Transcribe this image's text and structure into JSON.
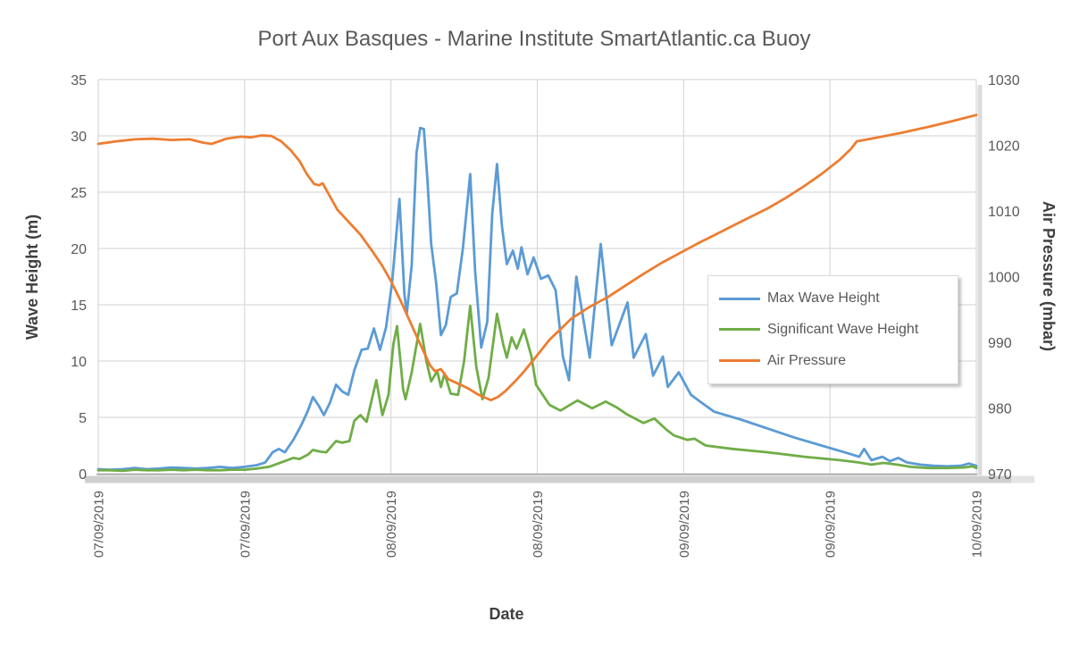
{
  "chart_data": {
    "type": "line",
    "title": "Port Aux Basques - Marine Institute SmartAtlantic.ca Buoy",
    "x_axis": {
      "title": "Date",
      "tick_labels": [
        "07/09/2019",
        "07/09/2019",
        "08/09/2019",
        "08/09/2019",
        "09/09/2019",
        "09/09/2019",
        "10/09/2019"
      ],
      "tick_positions_hours": [
        0,
        12,
        24,
        36,
        48,
        60,
        72
      ],
      "range_hours": [
        0,
        72
      ]
    },
    "y_axis_left": {
      "title": "Wave Height (m)",
      "range": [
        0,
        35
      ],
      "ticks": [
        0,
        5,
        10,
        15,
        20,
        25,
        30,
        35
      ]
    },
    "y_axis_right": {
      "title": "Air Pressure (mbar)",
      "range": [
        970,
        1030
      ],
      "ticks": [
        970,
        980,
        990,
        1000,
        1010,
        1020,
        1030
      ]
    },
    "grid": {
      "horizontal": true,
      "vertical": true,
      "color": "#d9d9d9"
    },
    "legend": {
      "position": "middle-right",
      "entries": [
        "Max Wave Height",
        "Significant Wave Height",
        "Air Pressure"
      ]
    },
    "colors": {
      "max_wave": "#5B9BD5",
      "significant_wave": "#70AD47",
      "air_pressure": "#ED7D31",
      "title_text": "#595959",
      "axis_text": "#404040",
      "gridline": "#d9d9d9"
    },
    "series": [
      {
        "name": "Max Wave Height",
        "color": "#5B9BD5",
        "axis": "left",
        "points": [
          [
            0,
            0.4
          ],
          [
            1,
            0.35
          ],
          [
            2,
            0.4
          ],
          [
            3,
            0.5
          ],
          [
            4,
            0.4
          ],
          [
            5,
            0.45
          ],
          [
            6,
            0.55
          ],
          [
            7,
            0.5
          ],
          [
            8,
            0.45
          ],
          [
            9,
            0.5
          ],
          [
            10,
            0.6
          ],
          [
            11,
            0.5
          ],
          [
            12,
            0.6
          ],
          [
            13,
            0.75
          ],
          [
            13.7,
            1.0
          ],
          [
            14.3,
            1.9
          ],
          [
            14.8,
            2.2
          ],
          [
            15.3,
            1.9
          ],
          [
            16,
            3.0
          ],
          [
            16.6,
            4.2
          ],
          [
            17.2,
            5.6
          ],
          [
            17.6,
            6.8
          ],
          [
            18.1,
            6.0
          ],
          [
            18.5,
            5.2
          ],
          [
            19,
            6.3
          ],
          [
            19.5,
            7.9
          ],
          [
            20,
            7.3
          ],
          [
            20.5,
            7.0
          ],
          [
            21,
            9.2
          ],
          [
            21.6,
            11.0
          ],
          [
            22.1,
            11.1
          ],
          [
            22.6,
            12.9
          ],
          [
            23.1,
            11.0
          ],
          [
            23.6,
            13.0
          ],
          [
            24.1,
            17.0
          ],
          [
            24.7,
            24.4
          ],
          [
            25.1,
            16.0
          ],
          [
            25.3,
            14.2
          ],
          [
            25.7,
            18.5
          ],
          [
            26.1,
            28.5
          ],
          [
            26.4,
            30.7
          ],
          [
            26.7,
            30.6
          ],
          [
            27,
            26.0
          ],
          [
            27.3,
            20.4
          ],
          [
            27.7,
            17.0
          ],
          [
            28.1,
            12.3
          ],
          [
            28.5,
            13.2
          ],
          [
            28.9,
            15.7
          ],
          [
            29.4,
            16.0
          ],
          [
            29.9,
            20.0
          ],
          [
            30.5,
            26.6
          ],
          [
            30.9,
            18.0
          ],
          [
            31.4,
            11.2
          ],
          [
            31.9,
            13.5
          ],
          [
            32.3,
            23.0
          ],
          [
            32.7,
            27.5
          ],
          [
            33.1,
            22.0
          ],
          [
            33.5,
            18.6
          ],
          [
            34,
            19.8
          ],
          [
            34.4,
            18.2
          ],
          [
            34.7,
            20.1
          ],
          [
            35.2,
            17.7
          ],
          [
            35.7,
            19.2
          ],
          [
            36.3,
            17.3
          ],
          [
            36.9,
            17.6
          ],
          [
            37.5,
            16.3
          ],
          [
            38.1,
            10.4
          ],
          [
            38.6,
            8.3
          ],
          [
            39.2,
            17.5
          ],
          [
            40.3,
            10.3
          ],
          [
            41.2,
            20.4
          ],
          [
            42.1,
            11.4
          ],
          [
            43.4,
            15.2
          ],
          [
            43.9,
            10.3
          ],
          [
            44.9,
            12.4
          ],
          [
            45.5,
            8.7
          ],
          [
            46.3,
            10.4
          ],
          [
            46.7,
            7.7
          ],
          [
            47.6,
            9.0
          ],
          [
            48.6,
            7.0
          ],
          [
            49.6,
            6.2
          ],
          [
            50.5,
            5.5
          ],
          [
            52.7,
            4.8
          ],
          [
            54.9,
            4.0
          ],
          [
            57.1,
            3.2
          ],
          [
            59.3,
            2.5
          ],
          [
            61.5,
            1.8
          ],
          [
            62.4,
            1.5
          ],
          [
            62.8,
            2.2
          ],
          [
            63.4,
            1.2
          ],
          [
            64.3,
            1.5
          ],
          [
            64.9,
            1.1
          ],
          [
            65.6,
            1.4
          ],
          [
            66.3,
            1.0
          ],
          [
            67.4,
            0.8
          ],
          [
            68.5,
            0.7
          ],
          [
            69.6,
            0.65
          ],
          [
            70.7,
            0.7
          ],
          [
            71.4,
            0.9
          ],
          [
            72,
            0.7
          ]
        ]
      },
      {
        "name": "Significant Wave Height",
        "color": "#70AD47",
        "axis": "left",
        "points": [
          [
            0,
            0.3
          ],
          [
            1,
            0.3
          ],
          [
            2,
            0.25
          ],
          [
            3,
            0.35
          ],
          [
            4,
            0.3
          ],
          [
            5,
            0.3
          ],
          [
            6,
            0.35
          ],
          [
            7,
            0.3
          ],
          [
            8,
            0.35
          ],
          [
            9,
            0.3
          ],
          [
            10,
            0.3
          ],
          [
            11,
            0.35
          ],
          [
            12,
            0.35
          ],
          [
            13,
            0.45
          ],
          [
            14,
            0.6
          ],
          [
            15,
            1.0
          ],
          [
            16,
            1.4
          ],
          [
            16.5,
            1.3
          ],
          [
            17.2,
            1.7
          ],
          [
            17.6,
            2.1
          ],
          [
            18.2,
            1.95
          ],
          [
            18.7,
            1.9
          ],
          [
            19.5,
            2.9
          ],
          [
            20,
            2.75
          ],
          [
            20.6,
            2.9
          ],
          [
            21,
            4.7
          ],
          [
            21.5,
            5.2
          ],
          [
            22,
            4.6
          ],
          [
            22.8,
            8.3
          ],
          [
            23.3,
            5.2
          ],
          [
            23.8,
            7.0
          ],
          [
            24.2,
            11.5
          ],
          [
            24.5,
            13.1
          ],
          [
            25,
            7.5
          ],
          [
            25.2,
            6.6
          ],
          [
            25.7,
            9.0
          ],
          [
            26.4,
            13.3
          ],
          [
            26.9,
            10.0
          ],
          [
            27.3,
            8.2
          ],
          [
            27.8,
            9.1
          ],
          [
            28.1,
            7.7
          ],
          [
            28.4,
            8.9
          ],
          [
            28.9,
            7.1
          ],
          [
            29.5,
            7.0
          ],
          [
            30,
            10.0
          ],
          [
            30.5,
            14.9
          ],
          [
            31,
            9.5
          ],
          [
            31.5,
            6.6
          ],
          [
            32,
            8.5
          ],
          [
            32.7,
            14.2
          ],
          [
            33.2,
            11.5
          ],
          [
            33.5,
            10.3
          ],
          [
            33.9,
            12.1
          ],
          [
            34.3,
            11.1
          ],
          [
            34.9,
            12.8
          ],
          [
            35.5,
            10.5
          ],
          [
            35.9,
            7.9
          ],
          [
            37,
            6.1
          ],
          [
            37.9,
            5.6
          ],
          [
            39.3,
            6.5
          ],
          [
            40.5,
            5.8
          ],
          [
            41.6,
            6.4
          ],
          [
            42.5,
            5.9
          ],
          [
            43.3,
            5.3
          ],
          [
            44.7,
            4.5
          ],
          [
            45.6,
            4.9
          ],
          [
            46.6,
            3.9
          ],
          [
            47.2,
            3.4
          ],
          [
            48.3,
            3.0
          ],
          [
            48.9,
            3.1
          ],
          [
            49.8,
            2.5
          ],
          [
            52,
            2.2
          ],
          [
            54.9,
            1.9
          ],
          [
            57.9,
            1.5
          ],
          [
            60.8,
            1.2
          ],
          [
            62.3,
            1.0
          ],
          [
            63.4,
            0.8
          ],
          [
            64.4,
            0.95
          ],
          [
            65.5,
            0.8
          ],
          [
            66.6,
            0.6
          ],
          [
            68.1,
            0.5
          ],
          [
            69.6,
            0.5
          ],
          [
            71,
            0.55
          ],
          [
            71.7,
            0.65
          ],
          [
            72,
            0.5
          ]
        ]
      },
      {
        "name": "Air Pressure",
        "color": "#ED7D31",
        "axis": "right",
        "points": [
          [
            0,
            1020.2
          ],
          [
            1.5,
            1020.6
          ],
          [
            3,
            1020.9
          ],
          [
            4.5,
            1021.0
          ],
          [
            6,
            1020.8
          ],
          [
            7.5,
            1020.9
          ],
          [
            8.6,
            1020.4
          ],
          [
            9.3,
            1020.2
          ],
          [
            10.5,
            1021.0
          ],
          [
            11.7,
            1021.3
          ],
          [
            12.5,
            1021.2
          ],
          [
            13.4,
            1021.5
          ],
          [
            14.2,
            1021.4
          ],
          [
            15,
            1020.6
          ],
          [
            15.8,
            1019.2
          ],
          [
            16.5,
            1017.6
          ],
          [
            17.1,
            1015.6
          ],
          [
            17.7,
            1014.1
          ],
          [
            18.1,
            1013.9
          ],
          [
            18.4,
            1014.2
          ],
          [
            19,
            1012.2
          ],
          [
            19.6,
            1010.2
          ],
          [
            20.5,
            1008.4
          ],
          [
            21.5,
            1006.4
          ],
          [
            22.5,
            1003.8
          ],
          [
            23.3,
            1001.6
          ],
          [
            24,
            999.3
          ],
          [
            24.8,
            996.3
          ],
          [
            25.6,
            993.0
          ],
          [
            26.5,
            989.3
          ],
          [
            27.2,
            986.5
          ],
          [
            27.6,
            985.6
          ],
          [
            28.1,
            985.9
          ],
          [
            28.7,
            984.4
          ],
          [
            29.5,
            983.7
          ],
          [
            30.3,
            983.0
          ],
          [
            31.1,
            982.1
          ],
          [
            31.8,
            981.5
          ],
          [
            32.2,
            981.2
          ],
          [
            32.8,
            981.7
          ],
          [
            33.4,
            982.6
          ],
          [
            34.1,
            983.9
          ],
          [
            34.8,
            985.3
          ],
          [
            35.5,
            986.9
          ],
          [
            36.2,
            988.5
          ],
          [
            37,
            990.4
          ],
          [
            37.8,
            991.8
          ],
          [
            38.8,
            993.6
          ],
          [
            40.3,
            995.4
          ],
          [
            41.8,
            996.9
          ],
          [
            43.2,
            998.6
          ],
          [
            44.7,
            1000.4
          ],
          [
            46.2,
            1002.1
          ],
          [
            47.6,
            1003.5
          ],
          [
            49.1,
            1005.0
          ],
          [
            50.5,
            1006.3
          ],
          [
            52,
            1007.7
          ],
          [
            53.5,
            1009.1
          ],
          [
            54.9,
            1010.4
          ],
          [
            56.4,
            1012.0
          ],
          [
            57.9,
            1013.8
          ],
          [
            59.3,
            1015.6
          ],
          [
            60.8,
            1017.8
          ],
          [
            61.7,
            1019.4
          ],
          [
            62.2,
            1020.6
          ],
          [
            63.7,
            1021.1
          ],
          [
            65.9,
            1021.9
          ],
          [
            68.1,
            1022.8
          ],
          [
            70.3,
            1023.8
          ],
          [
            72,
            1024.6
          ]
        ]
      }
    ]
  }
}
